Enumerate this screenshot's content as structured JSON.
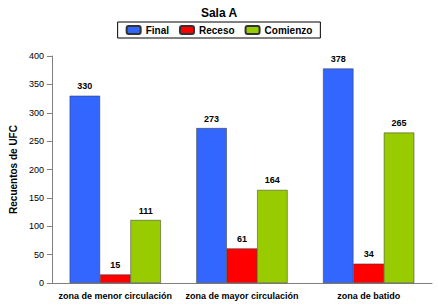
{
  "chart_data": {
    "type": "bar",
    "title": "Sala A",
    "categories": [
      "zona de menor circulación",
      "zona de mayor circulación",
      "zona de batido"
    ],
    "series": [
      {
        "name": "Final",
        "color": "#3366ff",
        "values": [
          330,
          273,
          378
        ]
      },
      {
        "name": "Receso",
        "color": "#ff0000",
        "values": [
          15,
          61,
          34
        ]
      },
      {
        "name": "Comienzo",
        "color": "#99cc00",
        "values": [
          111,
          164,
          265
        ]
      }
    ],
    "y_label": "Recuentos de UFC",
    "ylim": [
      0,
      400
    ],
    "yticks": [
      0,
      50,
      100,
      150,
      200,
      250,
      300,
      350,
      400
    ],
    "grid": false,
    "legend": "top",
    "data_labels": true
  }
}
